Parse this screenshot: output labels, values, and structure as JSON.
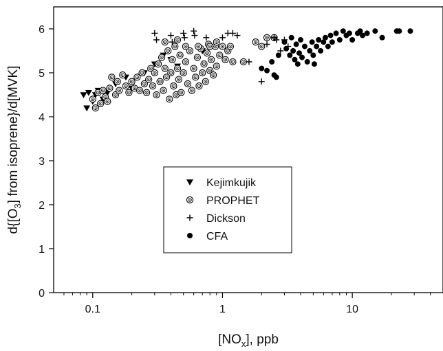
{
  "chart_data": {
    "type": "scatter",
    "title": "",
    "xlabel": {
      "pre": "[NO",
      "sub": "x",
      "post": "], ppb"
    },
    "ylabel": {
      "pre": "d{[O",
      "sub": "3",
      "post": "] from isoprene}/d[MVK]"
    },
    "x_scale": "log",
    "xlim": [
      0.05,
      50
    ],
    "ylim": [
      0,
      6.5
    ],
    "x_ticks": [
      {
        "value": 0.1,
        "label": "0.1"
      },
      {
        "value": 1,
        "label": "1"
      },
      {
        "value": 10,
        "label": "10"
      }
    ],
    "y_ticks": [
      {
        "value": 0,
        "label": "0"
      },
      {
        "value": 1,
        "label": "1"
      },
      {
        "value": 2,
        "label": "2"
      },
      {
        "value": 3,
        "label": "3"
      },
      {
        "value": 4,
        "label": "4"
      },
      {
        "value": 5,
        "label": "5"
      },
      {
        "value": 6,
        "label": "6"
      }
    ],
    "grid": false,
    "legend_position": "center",
    "series": [
      {
        "name": "Kejimkujik",
        "marker": "triangle-down",
        "points": [
          [
            0.085,
            4.5
          ],
          [
            0.09,
            4.2
          ],
          [
            0.093,
            4.55
          ],
          [
            0.1,
            4.35
          ],
          [
            0.105,
            4.5
          ],
          [
            0.11,
            4.6
          ],
          [
            0.12,
            4.4
          ],
          [
            0.13,
            4.55
          ],
          [
            0.15,
            4.75
          ],
          [
            0.18,
            4.9
          ],
          [
            0.2,
            4.65
          ],
          [
            0.25,
            5.0
          ],
          [
            0.3,
            5.2
          ],
          [
            0.35,
            5.4
          ],
          [
            0.4,
            5.3
          ],
          [
            0.45,
            5.15
          ],
          [
            0.55,
            5.5
          ],
          [
            0.7,
            5.5
          ]
        ]
      },
      {
        "name": "PROPHET",
        "marker": "circle-dot",
        "points": [
          [
            0.1,
            4.4
          ],
          [
            0.105,
            4.2
          ],
          [
            0.11,
            4.55
          ],
          [
            0.115,
            4.3
          ],
          [
            0.12,
            4.6
          ],
          [
            0.125,
            4.45
          ],
          [
            0.13,
            4.35
          ],
          [
            0.135,
            4.65
          ],
          [
            0.14,
            4.9
          ],
          [
            0.15,
            4.5
          ],
          [
            0.155,
            4.8
          ],
          [
            0.16,
            4.6
          ],
          [
            0.17,
            4.95
          ],
          [
            0.18,
            4.7
          ],
          [
            0.19,
            4.55
          ],
          [
            0.2,
            4.8
          ],
          [
            0.21,
            4.65
          ],
          [
            0.22,
            4.9
          ],
          [
            0.23,
            4.6
          ],
          [
            0.24,
            5.0
          ],
          [
            0.25,
            4.75
          ],
          [
            0.26,
            4.55
          ],
          [
            0.27,
            4.85
          ],
          [
            0.28,
            5.1
          ],
          [
            0.29,
            4.7
          ],
          [
            0.3,
            5.0
          ],
          [
            0.31,
            4.5
          ],
          [
            0.32,
            5.2
          ],
          [
            0.33,
            4.8
          ],
          [
            0.34,
            5.35
          ],
          [
            0.35,
            4.6
          ],
          [
            0.36,
            5.1
          ],
          [
            0.37,
            4.9
          ],
          [
            0.38,
            5.5
          ],
          [
            0.39,
            4.4
          ],
          [
            0.4,
            5.0
          ],
          [
            0.41,
            5.3
          ],
          [
            0.42,
            4.7
          ],
          [
            0.43,
            5.6
          ],
          [
            0.44,
            4.5
          ],
          [
            0.45,
            5.1
          ],
          [
            0.46,
            4.85
          ],
          [
            0.47,
            5.4
          ],
          [
            0.48,
            4.55
          ],
          [
            0.5,
            5.0
          ],
          [
            0.52,
            5.25
          ],
          [
            0.54,
            4.75
          ],
          [
            0.56,
            5.5
          ],
          [
            0.58,
            4.6
          ],
          [
            0.6,
            5.1
          ],
          [
            0.62,
            4.9
          ],
          [
            0.64,
            5.35
          ],
          [
            0.66,
            4.7
          ],
          [
            0.68,
            5.55
          ],
          [
            0.7,
            5.0
          ],
          [
            0.72,
            5.2
          ],
          [
            0.74,
            4.8
          ],
          [
            0.76,
            5.45
          ],
          [
            0.78,
            5.65
          ],
          [
            0.8,
            5.05
          ],
          [
            0.82,
            5.3
          ],
          [
            0.85,
            4.95
          ],
          [
            0.88,
            5.6
          ],
          [
            0.9,
            5.15
          ],
          [
            0.95,
            5.4
          ],
          [
            1.0,
            5.6
          ],
          [
            1.05,
            5.3
          ],
          [
            1.1,
            5.5
          ],
          [
            1.15,
            5.6
          ],
          [
            0.36,
            5.7
          ],
          [
            0.45,
            5.75
          ],
          [
            0.52,
            5.6
          ],
          [
            0.65,
            5.6
          ],
          [
            0.8,
            5.6
          ],
          [
            0.9,
            5.7
          ],
          [
            1.2,
            5.25
          ],
          [
            1.45,
            5.25
          ],
          [
            1.8,
            5.7
          ],
          [
            2.0,
            5.6
          ],
          [
            2.2,
            5.8
          ],
          [
            2.5,
            5.8
          ]
        ]
      },
      {
        "name": "Dickson",
        "marker": "plus",
        "points": [
          [
            0.3,
            5.9
          ],
          [
            0.31,
            5.75
          ],
          [
            0.4,
            5.85
          ],
          [
            0.41,
            5.7
          ],
          [
            0.5,
            5.9
          ],
          [
            0.51,
            5.8
          ],
          [
            0.6,
            5.95
          ],
          [
            0.61,
            5.85
          ],
          [
            0.75,
            5.8
          ],
          [
            1.0,
            5.8
          ],
          [
            1.1,
            5.9
          ],
          [
            1.2,
            5.9
          ],
          [
            1.3,
            5.85
          ],
          [
            1.6,
            5.25
          ],
          [
            2.0,
            4.8
          ],
          [
            2.2,
            5.65
          ],
          [
            2.5,
            5.8
          ],
          [
            2.6,
            5.75
          ],
          [
            2.8,
            5.5
          ],
          [
            3.0,
            5.75
          ],
          [
            3.2,
            5.6
          ]
        ]
      },
      {
        "name": "CFA",
        "marker": "circle",
        "points": [
          [
            2.0,
            5.1
          ],
          [
            2.2,
            5.05
          ],
          [
            2.4,
            5.25
          ],
          [
            2.5,
            4.95
          ],
          [
            2.6,
            4.9
          ],
          [
            2.7,
            5.4
          ],
          [
            3.0,
            5.7
          ],
          [
            3.1,
            5.55
          ],
          [
            3.3,
            5.4
          ],
          [
            3.4,
            5.8
          ],
          [
            3.5,
            5.5
          ],
          [
            3.6,
            5.3
          ],
          [
            3.7,
            5.65
          ],
          [
            3.8,
            5.2
          ],
          [
            3.9,
            5.45
          ],
          [
            4.0,
            5.75
          ],
          [
            4.1,
            5.35
          ],
          [
            4.3,
            5.6
          ],
          [
            4.5,
            5.25
          ],
          [
            4.7,
            5.5
          ],
          [
            4.9,
            5.7
          ],
          [
            5.0,
            5.4
          ],
          [
            5.1,
            5.2
          ],
          [
            5.3,
            5.6
          ],
          [
            5.5,
            5.75
          ],
          [
            5.7,
            5.5
          ],
          [
            6.0,
            5.7
          ],
          [
            6.2,
            5.8
          ],
          [
            6.5,
            5.6
          ],
          [
            6.8,
            5.85
          ],
          [
            7.0,
            5.7
          ],
          [
            7.5,
            5.9
          ],
          [
            8.0,
            5.75
          ],
          [
            8.5,
            5.95
          ],
          [
            9.0,
            5.85
          ],
          [
            9.5,
            5.9
          ],
          [
            10.0,
            5.75
          ],
          [
            11.0,
            5.9
          ],
          [
            11.5,
            5.95
          ],
          [
            12.0,
            5.85
          ],
          [
            13.0,
            5.9
          ],
          [
            15.0,
            5.95
          ],
          [
            17.0,
            5.8
          ],
          [
            22.0,
            5.95
          ],
          [
            23.0,
            5.95
          ],
          [
            28.0,
            5.95
          ]
        ]
      }
    ]
  }
}
